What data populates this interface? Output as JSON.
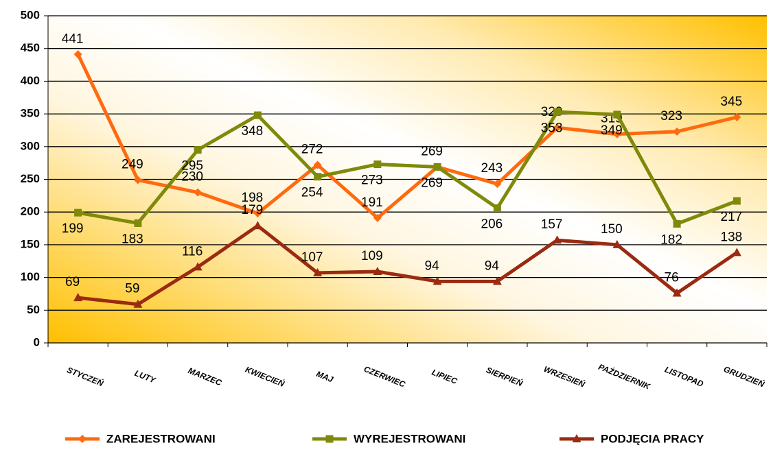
{
  "chart_data": {
    "type": "line",
    "categories": [
      "STYCZEŃ",
      "LUTY",
      "MARZEC",
      "KWIECIEŃ",
      "MAJ",
      "CZERWIEC",
      "LIPIEC",
      "SIERPIEŃ",
      "WRZESIEŃ",
      "PAŹDZIERNIK",
      "LISTOPAD",
      "GRUDZIEŃ"
    ],
    "series": [
      {
        "name": "ZAREJESTROWANI",
        "color": "#ff6a10",
        "marker": "diamond",
        "values": [
          441,
          249,
          230,
          198,
          272,
          191,
          269,
          243,
          329,
          319,
          323,
          345
        ]
      },
      {
        "name": "WYREJESTROWANI",
        "color": "#7f8a0a",
        "marker": "square",
        "values": [
          199,
          183,
          295,
          348,
          254,
          273,
          269,
          206,
          353,
          349,
          182,
          217
        ]
      },
      {
        "name": "PODJĘCIA PRACY",
        "color": "#9a2a10",
        "marker": "triangle",
        "values": [
          69,
          59,
          116,
          179,
          107,
          109,
          94,
          94,
          157,
          150,
          76,
          138
        ]
      }
    ],
    "ylim": [
      0,
      500
    ],
    "yticks": [
      0,
      50,
      100,
      150,
      200,
      250,
      300,
      350,
      400,
      450,
      500
    ],
    "grid": true,
    "legend": "bottom"
  }
}
